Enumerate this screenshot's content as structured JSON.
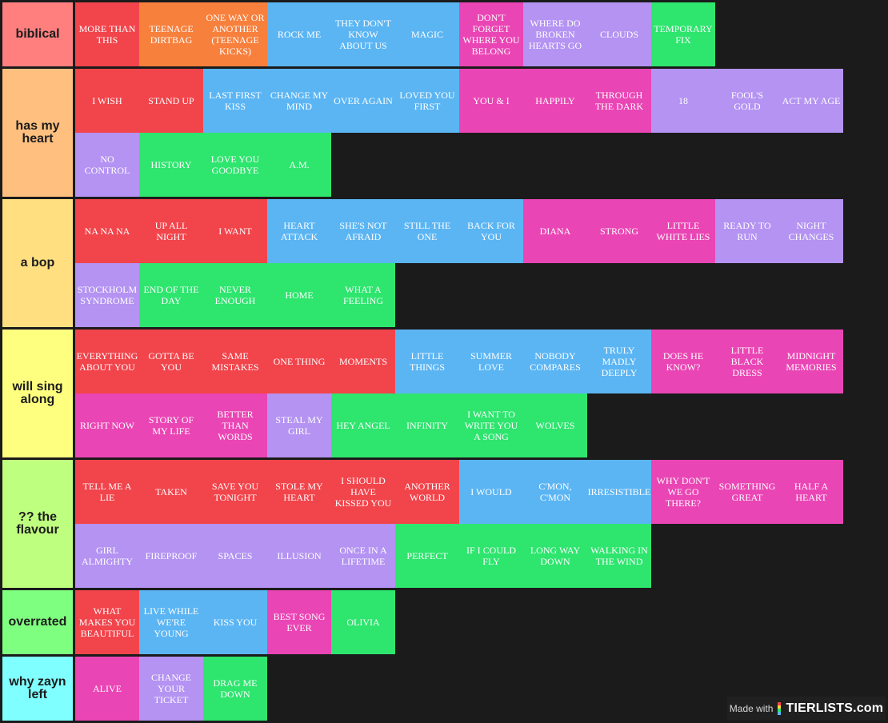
{
  "tiers": [
    {
      "label": "biblical",
      "color": "#ff7f7f",
      "items": [
        {
          "text": "MORE THAN THIS",
          "color": "red"
        },
        {
          "text": "TEENAGE DIRTBAG",
          "color": "orange"
        },
        {
          "text": "ONE WAY OR ANOTHER (TEENAGE KICKS)",
          "color": "orange"
        },
        {
          "text": "ROCK ME",
          "color": "blue"
        },
        {
          "text": "THEY DON'T KNOW ABOUT US",
          "color": "blue"
        },
        {
          "text": "MAGIC",
          "color": "blue"
        },
        {
          "text": "DON'T FORGET WHERE YOU BELONG",
          "color": "pink"
        },
        {
          "text": "WHERE DO BROKEN HEARTS GO",
          "color": "purple"
        },
        {
          "text": "CLOUDS",
          "color": "purple"
        },
        {
          "text": "TEMPORARY FIX",
          "color": "green"
        }
      ]
    },
    {
      "label": "has my heart",
      "color": "#ffbf7f",
      "items": [
        {
          "text": "I WISH",
          "color": "red"
        },
        {
          "text": "STAND UP",
          "color": "red"
        },
        {
          "text": "LAST FIRST KISS",
          "color": "blue"
        },
        {
          "text": "CHANGE MY MIND",
          "color": "blue"
        },
        {
          "text": "OVER AGAIN",
          "color": "blue"
        },
        {
          "text": "LOVED YOU FIRST",
          "color": "blue"
        },
        {
          "text": "YOU & I",
          "color": "pink"
        },
        {
          "text": "HAPPILY",
          "color": "pink"
        },
        {
          "text": "THROUGH THE DARK",
          "color": "pink"
        },
        {
          "text": "18",
          "color": "purple"
        },
        {
          "text": "FOOL'S GOLD",
          "color": "purple"
        },
        {
          "text": "ACT MY AGE",
          "color": "purple"
        },
        {
          "text": "NO CONTROL",
          "color": "purple"
        },
        {
          "text": "HISTORY",
          "color": "green"
        },
        {
          "text": "LOVE YOU GOODBYE",
          "color": "green"
        },
        {
          "text": "A.M.",
          "color": "green"
        }
      ]
    },
    {
      "label": "a bop",
      "color": "#ffdf7f",
      "items": [
        {
          "text": "NA NA NA",
          "color": "red"
        },
        {
          "text": "UP ALL NIGHT",
          "color": "red"
        },
        {
          "text": "I WANT",
          "color": "red"
        },
        {
          "text": "HEART ATTACK",
          "color": "blue"
        },
        {
          "text": "SHE'S NOT AFRAID",
          "color": "blue"
        },
        {
          "text": "STILL THE ONE",
          "color": "blue"
        },
        {
          "text": "BACK FOR YOU",
          "color": "blue"
        },
        {
          "text": "DIANA",
          "color": "pink"
        },
        {
          "text": "STRONG",
          "color": "pink"
        },
        {
          "text": "LITTLE WHITE LIES",
          "color": "pink"
        },
        {
          "text": "READY TO RUN",
          "color": "purple"
        },
        {
          "text": "NIGHT CHANGES",
          "color": "purple"
        },
        {
          "text": "STOCKHOLM SYNDROME",
          "color": "purple"
        },
        {
          "text": "END OF THE DAY",
          "color": "green"
        },
        {
          "text": "NEVER ENOUGH",
          "color": "green"
        },
        {
          "text": "HOME",
          "color": "green"
        },
        {
          "text": "WHAT A FEELING",
          "color": "green"
        }
      ]
    },
    {
      "label": "will sing along",
      "color": "#ffff7f",
      "items": [
        {
          "text": "EVERYTHING ABOUT YOU",
          "color": "red"
        },
        {
          "text": "GOTTA BE YOU",
          "color": "red"
        },
        {
          "text": "SAME MISTAKES",
          "color": "red"
        },
        {
          "text": "ONE THING",
          "color": "red"
        },
        {
          "text": "MOMENTS",
          "color": "red"
        },
        {
          "text": "LITTLE THINGS",
          "color": "blue"
        },
        {
          "text": "SUMMER LOVE",
          "color": "blue"
        },
        {
          "text": "NOBODY COMPARES",
          "color": "blue"
        },
        {
          "text": "TRULY MADLY DEEPLY",
          "color": "blue"
        },
        {
          "text": "DOES HE KNOW?",
          "color": "pink"
        },
        {
          "text": "LITTLE BLACK DRESS",
          "color": "pink"
        },
        {
          "text": "MIDNIGHT MEMORIES",
          "color": "pink"
        },
        {
          "text": "RIGHT NOW",
          "color": "pink"
        },
        {
          "text": "STORY OF MY LIFE",
          "color": "pink"
        },
        {
          "text": "BETTER THAN WORDS",
          "color": "pink"
        },
        {
          "text": "STEAL MY GIRL",
          "color": "purple"
        },
        {
          "text": "HEY ANGEL",
          "color": "green"
        },
        {
          "text": "INFINITY",
          "color": "green"
        },
        {
          "text": "I WANT TO WRITE YOU A SONG",
          "color": "green"
        },
        {
          "text": "WOLVES",
          "color": "green"
        }
      ]
    },
    {
      "label": "?? the flavour",
      "color": "#bfff7f",
      "items": [
        {
          "text": "TELL ME A LIE",
          "color": "red"
        },
        {
          "text": "TAKEN",
          "color": "red"
        },
        {
          "text": "SAVE YOU TONIGHT",
          "color": "red"
        },
        {
          "text": "STOLE MY HEART",
          "color": "red"
        },
        {
          "text": "I SHOULD HAVE KISSED YOU",
          "color": "red"
        },
        {
          "text": "ANOTHER WORLD",
          "color": "red"
        },
        {
          "text": "I WOULD",
          "color": "blue"
        },
        {
          "text": "C'MON, C'MON",
          "color": "blue"
        },
        {
          "text": "IRRESISTIBLE",
          "color": "blue"
        },
        {
          "text": "WHY DON'T WE GO THERE?",
          "color": "pink"
        },
        {
          "text": "SOMETHING GREAT",
          "color": "pink"
        },
        {
          "text": "HALF A HEART",
          "color": "pink"
        },
        {
          "text": "GIRL ALMIGHTY",
          "color": "purple"
        },
        {
          "text": "FIREPROOF",
          "color": "purple"
        },
        {
          "text": "SPACES",
          "color": "purple"
        },
        {
          "text": "ILLUSION",
          "color": "purple"
        },
        {
          "text": "ONCE IN A LIFETIME",
          "color": "purple"
        },
        {
          "text": "PERFECT",
          "color": "green"
        },
        {
          "text": "IF I COULD FLY",
          "color": "green"
        },
        {
          "text": "LONG WAY DOWN",
          "color": "green"
        },
        {
          "text": "WALKING IN THE WIND",
          "color": "green"
        }
      ]
    },
    {
      "label": "overrated",
      "color": "#7fff7f",
      "items": [
        {
          "text": "WHAT MAKES YOU BEAUTIFUL",
          "color": "red"
        },
        {
          "text": "LIVE WHILE WE'RE YOUNG",
          "color": "blue"
        },
        {
          "text": "KISS YOU",
          "color": "blue"
        },
        {
          "text": "BEST SONG EVER",
          "color": "pink"
        },
        {
          "text": "OLIVIA",
          "color": "green"
        }
      ]
    },
    {
      "label": "why zayn left",
      "color": "#7fffff",
      "items": [
        {
          "text": "ALIVE",
          "color": "pink"
        },
        {
          "text": "CHANGE YOUR TICKET",
          "color": "purple"
        },
        {
          "text": "DRAG ME DOWN",
          "color": "green"
        }
      ]
    }
  ],
  "watermark": {
    "made_with": "Made with",
    "brand": "TIERLISTS.com"
  }
}
